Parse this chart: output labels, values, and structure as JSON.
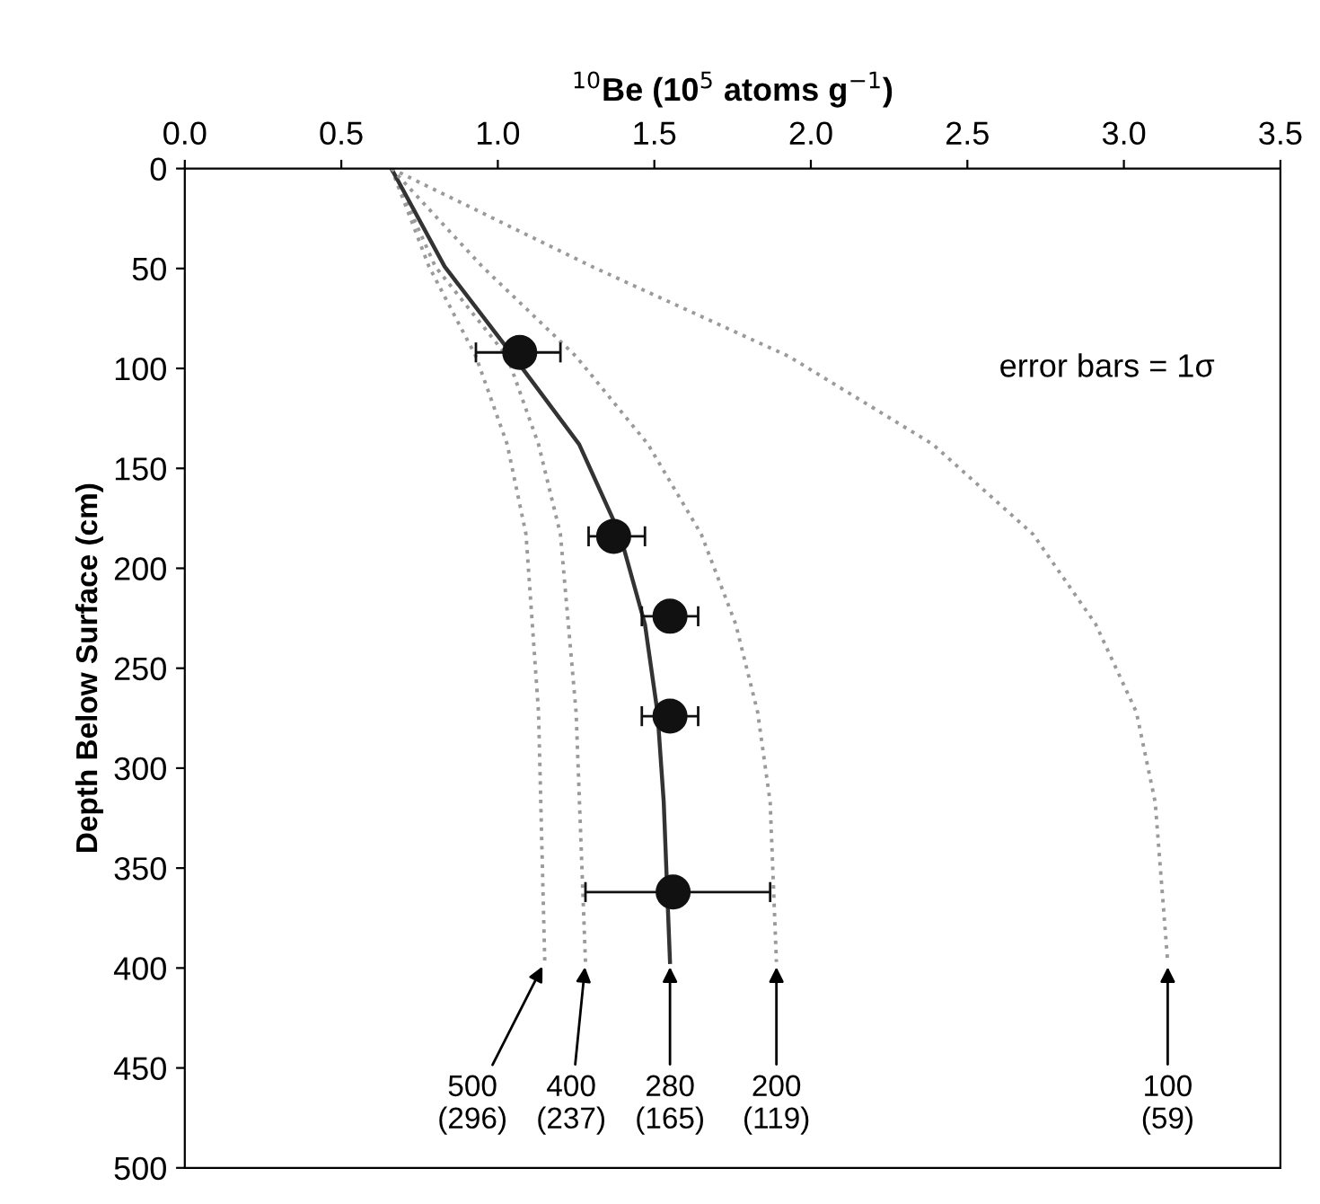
{
  "chart_data": {
    "type": "line",
    "xlabel": "$^{10}$Be (10$^{5}$ atoms g$^{−1}$)",
    "ylabel": "Depth Below Surface (cm)",
    "xlim": [
      0,
      3.5
    ],
    "xticks": [
      {
        "value": 0,
        "label": "0.0"
      },
      {
        "value": 0.5,
        "label": "0.5"
      },
      {
        "value": 1,
        "label": "1.0"
      },
      {
        "value": 1.5,
        "label": "1.5"
      },
      {
        "value": 2,
        "label": "2.0"
      },
      {
        "value": 2.5,
        "label": "2.5"
      },
      {
        "value": 3,
        "label": "3.0"
      },
      {
        "value": 3.5,
        "label": "3.5"
      }
    ],
    "ylim": [
      500,
      0
    ],
    "yticks": [
      0,
      50,
      100,
      150,
      200,
      250,
      300,
      350,
      400,
      450,
      500
    ],
    "grid": false,
    "series": [
      {
        "line_style": "dotted",
        "marker": "none",
        "color": "#9a9a9a",
        "x": [
          0.66,
          0.78,
          0.93,
          1.03,
          1.09,
          1.13,
          1.15
        ],
        "values": [
          0,
          49,
          94,
          138,
          183,
          272,
          397
        ]
      },
      {
        "line_style": "dotted",
        "marker": "none",
        "color": "#9a9a9a",
        "x": [
          0.66,
          0.8,
          1.03,
          1.13,
          1.2,
          1.25,
          1.28
        ],
        "values": [
          0,
          49,
          94,
          138,
          183,
          272,
          397
        ]
      },
      {
        "line_style": "solid",
        "marker": "none",
        "color": "#333333",
        "x": [
          0.66,
          0.83,
          1.05,
          1.26,
          1.39,
          1.47,
          1.51,
          1.53,
          1.55
        ],
        "values": [
          0,
          49,
          94,
          138,
          183,
          228,
          272,
          317,
          397
        ]
      },
      {
        "line_style": "dotted",
        "marker": "none",
        "color": "#9a9a9a",
        "x": [
          0.66,
          0.95,
          1.25,
          1.48,
          1.65,
          1.76,
          1.83,
          1.87,
          1.89
        ],
        "values": [
          0,
          49,
          94,
          138,
          183,
          228,
          272,
          317,
          397
        ]
      },
      {
        "line_style": "dotted",
        "marker": "none",
        "color": "#9a9a9a",
        "x": [
          0.66,
          1.3,
          1.93,
          2.39,
          2.71,
          2.91,
          3.04,
          3.1,
          3.14
        ],
        "values": [
          0,
          49,
          94,
          138,
          183,
          228,
          272,
          317,
          397
        ]
      },
      {
        "type": "scatter",
        "marker": "circle",
        "color": "#111111",
        "x": [
          1.07,
          1.37,
          1.55,
          1.55,
          1.56
        ],
        "values": [
          92,
          184,
          224,
          274,
          362
        ],
        "xerrors": [
          [
            0.93,
            1.2
          ],
          [
            1.29,
            1.47
          ],
          [
            1.46,
            1.64
          ],
          [
            1.46,
            1.64
          ],
          [
            1.28,
            1.87
          ]
        ]
      }
    ],
    "annotations": [
      "error bars = 1σ",
      {
        "text": "500\n(296)",
        "x": 1.15,
        "y": 397
      },
      {
        "text": "400\n(237)",
        "x": 1.28,
        "y": 397
      },
      {
        "text": "280\n(165)",
        "x": 1.55,
        "y": 397
      },
      {
        "text": "200\n(119)",
        "x": 1.89,
        "y": 397
      },
      {
        "text": "100\n(59)",
        "x": 3.14,
        "y": 397
      }
    ]
  }
}
